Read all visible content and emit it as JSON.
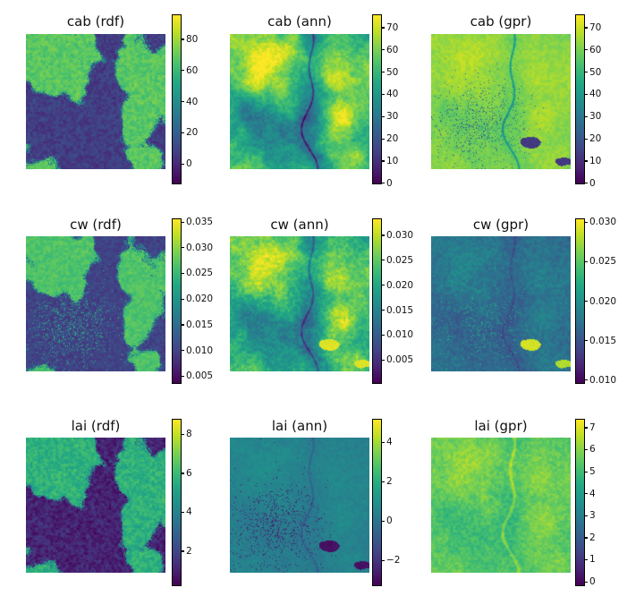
{
  "figure": {
    "background": "#ffffff",
    "text_color": "#111111"
  },
  "chart_data": {
    "type": "heatmap",
    "title": "",
    "layout": {
      "rows": 3,
      "cols": 3,
      "grid": false,
      "colorbar_position": "right-of-each-panel",
      "axes_visible": false
    },
    "colormap": {
      "name": "viridis",
      "stops": [
        "#440154",
        "#482475",
        "#414487",
        "#355f8d",
        "#2a788e",
        "#21918c",
        "#22a884",
        "#44bf70",
        "#7ad151",
        "#bddf26",
        "#fde725"
      ]
    },
    "panels": [
      {
        "id": "cab-rdf",
        "title": "cab (rdf)",
        "variable": "cab",
        "method": "rdf",
        "row": 0,
        "col": 0,
        "colorbar": {
          "vmin": -13,
          "vmax": 96,
          "ticks": [
            {
              "value": 80,
              "label": "80"
            },
            {
              "value": 60,
              "label": "60"
            },
            {
              "value": 40,
              "label": "40"
            },
            {
              "value": 20,
              "label": "20"
            },
            {
              "value": 0,
              "label": "0"
            }
          ]
        },
        "render": {
          "mode": "binary",
          "thr": 0.52,
          "lo": 0.18,
          "hi": 0.74,
          "noise": 0.1,
          "river": 0,
          "lake": null,
          "corner": null,
          "dots": null,
          "seed": 11
        }
      },
      {
        "id": "cab-ann",
        "title": "cab (ann)",
        "variable": "cab",
        "method": "ann",
        "row": 0,
        "col": 1,
        "colorbar": {
          "vmin": -0.5,
          "vmax": 76,
          "ticks": [
            {
              "value": 70,
              "label": "70"
            },
            {
              "value": 60,
              "label": "60"
            },
            {
              "value": 50,
              "label": "50"
            },
            {
              "value": 40,
              "label": "40"
            },
            {
              "value": 30,
              "label": "30"
            },
            {
              "value": 20,
              "label": "20"
            },
            {
              "value": 10,
              "label": "10"
            },
            {
              "value": 0,
              "label": "0"
            }
          ]
        },
        "render": {
          "mode": "smooth",
          "base": 0.68,
          "amp": 0.25,
          "noise": 0.1,
          "river": -0.35,
          "lake": null,
          "corner": null,
          "dots": null,
          "seed": 22
        }
      },
      {
        "id": "cab-gpr",
        "title": "cab (gpr)",
        "variable": "cab",
        "method": "gpr",
        "row": 0,
        "col": 2,
        "colorbar": {
          "vmin": -0.5,
          "vmax": 76,
          "ticks": [
            {
              "value": 70,
              "label": "70"
            },
            {
              "value": 60,
              "label": "60"
            },
            {
              "value": 50,
              "label": "50"
            },
            {
              "value": 40,
              "label": "40"
            },
            {
              "value": 30,
              "label": "30"
            },
            {
              "value": 20,
              "label": "20"
            },
            {
              "value": 10,
              "label": "10"
            },
            {
              "value": 0,
              "label": "0"
            }
          ]
        },
        "render": {
          "mode": "smooth",
          "base": 0.82,
          "amp": 0.05,
          "noise": 0.06,
          "river": -0.28,
          "lake": 0.17,
          "corner": 0.17,
          "dots": {
            "t": 0.35,
            "density": 0.3
          },
          "seed": 33
        }
      },
      {
        "id": "cw-rdf",
        "title": "cw (rdf)",
        "variable": "cw",
        "method": "rdf",
        "row": 1,
        "col": 0,
        "colorbar": {
          "vmin": 0.0035,
          "vmax": 0.0357,
          "ticks": [
            {
              "value": 0.035,
              "label": "0.035"
            },
            {
              "value": 0.03,
              "label": "0.030"
            },
            {
              "value": 0.025,
              "label": "0.025"
            },
            {
              "value": 0.02,
              "label": "0.020"
            },
            {
              "value": 0.015,
              "label": "0.015"
            },
            {
              "value": 0.01,
              "label": "0.010"
            },
            {
              "value": 0.005,
              "label": "0.005"
            }
          ]
        },
        "render": {
          "mode": "binary",
          "thr": 0.6,
          "lo": 0.2,
          "hi": 0.72,
          "noise": 0.08,
          "river": 0,
          "lake": null,
          "corner": null,
          "dots": {
            "t": 0.62,
            "density": 0.3
          },
          "seed": 44
        }
      },
      {
        "id": "cw-ann",
        "title": "cw (ann)",
        "variable": "cw",
        "method": "ann",
        "row": 1,
        "col": 1,
        "colorbar": {
          "vmin": 0.0002,
          "vmax": 0.0334,
          "ticks": [
            {
              "value": 0.03,
              "label": "0.030"
            },
            {
              "value": 0.025,
              "label": "0.025"
            },
            {
              "value": 0.02,
              "label": "0.020"
            },
            {
              "value": 0.015,
              "label": "0.015"
            },
            {
              "value": 0.01,
              "label": "0.010"
            },
            {
              "value": 0.005,
              "label": "0.005"
            }
          ]
        },
        "render": {
          "mode": "smooth",
          "base": 0.66,
          "amp": 0.22,
          "noise": 0.12,
          "river": -0.25,
          "lake": 0.95,
          "corner": 0.95,
          "dots": null,
          "seed": 55
        }
      },
      {
        "id": "cw-gpr",
        "title": "cw (gpr)",
        "variable": "cw",
        "method": "gpr",
        "row": 1,
        "col": 2,
        "colorbar": {
          "vmin": 0.0095,
          "vmax": 0.0305,
          "ticks": [
            {
              "value": 0.03,
              "label": "0.030"
            },
            {
              "value": 0.025,
              "label": "0.025"
            },
            {
              "value": 0.02,
              "label": "0.020"
            },
            {
              "value": 0.015,
              "label": "0.015"
            },
            {
              "value": 0.01,
              "label": "0.010"
            }
          ]
        },
        "render": {
          "mode": "smooth",
          "base": 0.37,
          "amp": 0.06,
          "noise": 0.09,
          "river": -0.1,
          "lake": 0.93,
          "corner": 0.88,
          "dots": {
            "t": 0.6,
            "density": 0.18
          },
          "seed": 66
        }
      },
      {
        "id": "lai-rdf",
        "title": "lai (rdf)",
        "variable": "lai",
        "method": "rdf",
        "row": 2,
        "col": 0,
        "colorbar": {
          "vmin": 0.2,
          "vmax": 8.8,
          "ticks": [
            {
              "value": 8,
              "label": "8"
            },
            {
              "value": 6,
              "label": "6"
            },
            {
              "value": 4,
              "label": "4"
            },
            {
              "value": 2,
              "label": "2"
            }
          ]
        },
        "render": {
          "mode": "binary",
          "thr": 0.52,
          "lo": 0.1,
          "hi": 0.64,
          "noise": 0.12,
          "river": 0,
          "lake": null,
          "corner": null,
          "dots": null,
          "seed": 77
        }
      },
      {
        "id": "lai-ann",
        "title": "lai (ann)",
        "variable": "lai",
        "method": "ann",
        "row": 2,
        "col": 1,
        "colorbar": {
          "vmin": -3.3,
          "vmax": 5.2,
          "ticks": [
            {
              "value": 4,
              "label": "4"
            },
            {
              "value": 2,
              "label": "2"
            },
            {
              "value": 0,
              "label": "0"
            },
            {
              "value": -2,
              "label": "−2"
            }
          ]
        },
        "render": {
          "mode": "smooth",
          "base": 0.44,
          "amp": 0.03,
          "noise": 0.05,
          "river": -0.12,
          "lake": 0.05,
          "corner": 0.05,
          "dots": {
            "t": 0.08,
            "density": 0.3
          },
          "seed": 88
        }
      },
      {
        "id": "lai-gpr",
        "title": "lai (gpr)",
        "variable": "lai",
        "method": "gpr",
        "row": 2,
        "col": 2,
        "colorbar": {
          "vmin": -0.2,
          "vmax": 7.4,
          "ticks": [
            {
              "value": 7,
              "label": "7"
            },
            {
              "value": 6,
              "label": "6"
            },
            {
              "value": 5,
              "label": "5"
            },
            {
              "value": 4,
              "label": "4"
            },
            {
              "value": 3,
              "label": "3"
            },
            {
              "value": 2,
              "label": "2"
            },
            {
              "value": 1,
              "label": "1"
            },
            {
              "value": 0,
              "label": "0"
            }
          ]
        },
        "render": {
          "mode": "smooth",
          "base": 0.75,
          "amp": 0.07,
          "noise": 0.09,
          "river": 0.16,
          "lake": null,
          "corner": null,
          "dots": null,
          "seed": 99
        }
      }
    ]
  }
}
